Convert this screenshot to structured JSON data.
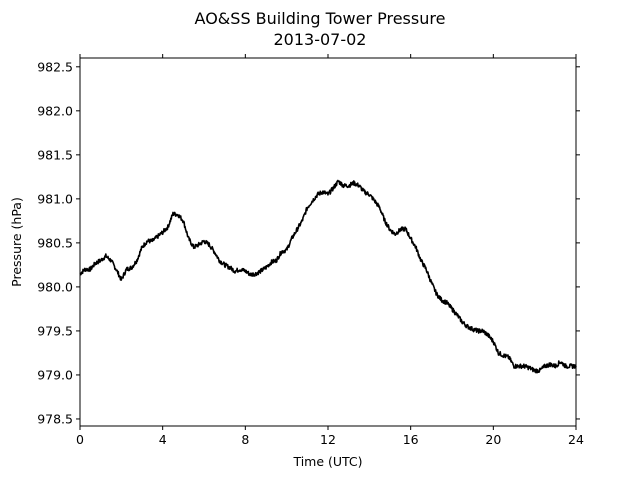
{
  "chart_data": {
    "type": "line",
    "title": "AO&SS Building Tower Pressure",
    "subtitle": "2013-07-02",
    "xlabel": "Time (UTC)",
    "ylabel": "Pressure (hPa)",
    "xlim": [
      0,
      24
    ],
    "ylim": [
      978.42,
      982.6
    ],
    "xticks": [
      0,
      4,
      8,
      12,
      16,
      20,
      24
    ],
    "yticks": [
      978.5,
      979.0,
      979.5,
      980.0,
      980.5,
      981.0,
      981.5,
      982.0,
      982.5
    ],
    "ytick_labels": [
      "978.5",
      "979.0",
      "979.5",
      "980.0",
      "980.5",
      "981.0",
      "981.5",
      "982.0",
      "982.5"
    ],
    "grid": false,
    "line_color": "#000000",
    "series": [
      {
        "x": [
          0.0,
          0.25,
          0.5,
          0.75,
          1.0,
          1.25,
          1.5,
          1.75,
          2.0,
          2.25,
          2.5,
          2.75,
          3.0,
          3.25,
          3.5,
          3.75,
          4.0,
          4.25,
          4.5,
          4.75,
          5.0,
          5.25,
          5.5,
          5.75,
          6.0,
          6.25,
          6.5,
          6.75,
          7.0,
          7.25,
          7.5,
          7.75,
          8.0,
          8.25,
          8.5,
          8.75,
          9.0,
          9.25,
          9.5,
          9.75,
          10.0,
          10.25,
          10.5,
          10.75,
          11.0,
          11.25,
          11.5,
          11.75,
          12.0,
          12.25,
          12.5,
          12.75,
          13.0,
          13.25,
          13.5,
          13.75,
          14.0,
          14.25,
          14.5,
          14.75,
          15.0,
          15.25,
          15.5,
          15.75,
          16.0,
          16.25,
          16.5,
          16.75,
          17.0,
          17.25,
          17.5,
          17.75,
          18.0,
          18.25,
          18.5,
          18.75,
          19.0,
          19.25,
          19.5,
          19.75,
          20.0,
          20.25,
          20.5,
          20.75,
          21.0,
          21.25,
          21.5,
          21.75,
          22.0,
          22.25,
          22.5,
          22.75,
          23.0,
          23.25,
          23.5,
          23.75,
          24.0
        ],
        "values": [
          980.15,
          980.2,
          980.2,
          980.27,
          980.3,
          980.35,
          980.3,
          980.2,
          980.08,
          980.2,
          980.22,
          980.3,
          980.45,
          980.52,
          980.52,
          980.57,
          980.62,
          980.68,
          980.83,
          980.82,
          980.75,
          980.55,
          980.45,
          980.48,
          980.52,
          980.48,
          980.4,
          980.3,
          980.25,
          980.22,
          980.18,
          980.2,
          980.18,
          980.14,
          980.15,
          980.18,
          980.22,
          980.28,
          980.3,
          980.4,
          980.42,
          980.55,
          980.65,
          980.75,
          980.9,
          980.98,
          981.05,
          981.08,
          981.05,
          981.12,
          981.2,
          981.15,
          981.15,
          981.18,
          981.15,
          981.08,
          981.05,
          980.98,
          980.9,
          980.75,
          980.65,
          980.6,
          980.65,
          980.66,
          980.55,
          980.45,
          980.3,
          980.2,
          980.05,
          979.92,
          979.85,
          979.82,
          979.75,
          979.68,
          979.6,
          979.55,
          979.52,
          979.5,
          979.5,
          979.45,
          979.38,
          979.25,
          979.22,
          979.2,
          979.1,
          979.1,
          979.1,
          979.08,
          979.05,
          979.05,
          979.1,
          979.12,
          979.1,
          979.15,
          979.1,
          979.1,
          979.1
        ]
      }
    ]
  }
}
